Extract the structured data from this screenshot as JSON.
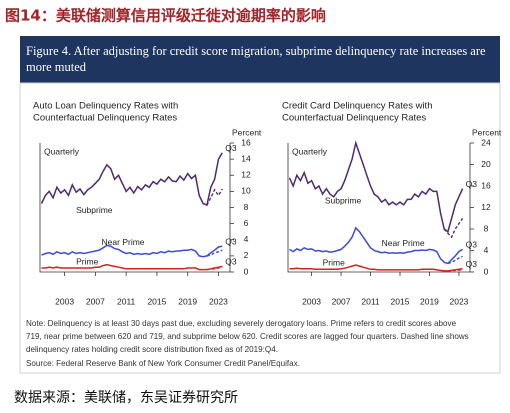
{
  "header": {
    "title": "图14：美联储测算信用评级迁徙对逾期率的影响"
  },
  "figure": {
    "title": [
      "Figure 4. After adjusting for credit score migration, subprime delinquency rate increases are",
      "more muted"
    ]
  },
  "chart_data": [
    {
      "type": "line",
      "title": [
        "Auto Loan Delinquency Rates with",
        "Counterfactual Delinquency Rates"
      ],
      "frequency_label": "Quarterly",
      "unit_label": "Percent",
      "x": [
        2000,
        2000.5,
        2001,
        2001.5,
        2002,
        2002.5,
        2003,
        2003.5,
        2004,
        2004.5,
        2005,
        2005.5,
        2006,
        2006.5,
        2007,
        2007.5,
        2008,
        2008.5,
        2009,
        2009.5,
        2010,
        2010.5,
        2011,
        2011.5,
        2012,
        2012.5,
        2013,
        2013.5,
        2014,
        2014.5,
        2015,
        2015.5,
        2016,
        2016.5,
        2017,
        2017.5,
        2018,
        2018.5,
        2019,
        2019.5,
        2020,
        2020.5,
        2021,
        2021.5,
        2022,
        2022.5,
        2023,
        2023.5
      ],
      "xlim": [
        1999.8,
        2024.5
      ],
      "xticks": [
        2003,
        2007,
        2011,
        2015,
        2019,
        2023
      ],
      "ylim": [
        0,
        16
      ],
      "yticks": [
        0,
        2,
        4,
        6,
        8,
        10,
        12,
        14,
        16
      ],
      "series": [
        {
          "name": "Subprime",
          "color": "#4e2a6e",
          "end_label": "Q3",
          "values": [
            8.5,
            9.5,
            10,
            9.2,
            10.5,
            9.8,
            10.2,
            9.5,
            10.8,
            9.9,
            10.3,
            9.6,
            10.2,
            10.5,
            11,
            11.5,
            12.5,
            13.3,
            12.8,
            11.5,
            12,
            11,
            10,
            10.5,
            9.8,
            10.6,
            10.2,
            10.8,
            10.5,
            11.2,
            10.9,
            11.5,
            11.2,
            11.8,
            11.3,
            11.2,
            11.9,
            11.4,
            12.2,
            11.6,
            12,
            9.5,
            8.5,
            8.3,
            10.5,
            11.5,
            14,
            14.8
          ]
        },
        {
          "name": "Near Prime",
          "color": "#3a4bd6",
          "end_label": "Q3",
          "values": [
            2.1,
            2.3,
            2.4,
            2.2,
            2.5,
            2.3,
            2.4,
            2.2,
            2.5,
            2.3,
            2.4,
            2.3,
            2.4,
            2.5,
            2.6,
            2.7,
            3.0,
            3.3,
            3.2,
            2.9,
            2.8,
            2.5,
            2.3,
            2.4,
            2.2,
            2.3,
            2.2,
            2.3,
            2.2,
            2.4,
            2.3,
            2.5,
            2.4,
            2.6,
            2.5,
            2.6,
            2.6,
            2.7,
            2.7,
            2.8,
            2.6,
            2.0,
            1.9,
            2.0,
            2.4,
            2.7,
            3.1,
            3.2
          ]
        },
        {
          "name": "Prime",
          "color": "#d62020",
          "end_label": "Q3",
          "values": [
            0.5,
            0.5,
            0.6,
            0.5,
            0.6,
            0.5,
            0.5,
            0.5,
            0.5,
            0.5,
            0.5,
            0.5,
            0.5,
            0.5,
            0.6,
            0.6,
            0.8,
            0.9,
            0.8,
            0.7,
            0.6,
            0.5,
            0.4,
            0.4,
            0.4,
            0.4,
            0.4,
            0.4,
            0.4,
            0.4,
            0.4,
            0.4,
            0.4,
            0.4,
            0.4,
            0.4,
            0.4,
            0.4,
            0.5,
            0.5,
            0.5,
            0.3,
            0.3,
            0.3,
            0.4,
            0.5,
            0.6,
            0.7
          ]
        },
        {
          "color": "#4e2a6e",
          "dashed": true,
          "x": [
            2021.5,
            2022,
            2022.5,
            2023,
            2023.5
          ],
          "values": [
            8.3,
            9.2,
            10.2,
            9.5,
            10.3
          ]
        },
        {
          "color": "#3a4bd6",
          "dashed": true,
          "x": [
            2021.5,
            2022,
            2022.5,
            2023,
            2023.5
          ],
          "values": [
            2.0,
            2.1,
            2.4,
            2.5,
            2.7
          ]
        },
        {
          "color": "#d62020",
          "dashed": true,
          "x": [
            2021.5,
            2022,
            2022.5,
            2023,
            2023.5
          ],
          "values": [
            0.3,
            0.35,
            0.4,
            0.5,
            0.55
          ]
        }
      ]
    },
    {
      "type": "line",
      "title": [
        "Credit Card Delinquency Rates with",
        "Counterfactual Delinquency Rates"
      ],
      "frequency_label": "Quarterly",
      "unit_label": "Percent",
      "x": [
        2000,
        2000.5,
        2001,
        2001.5,
        2002,
        2002.5,
        2003,
        2003.5,
        2004,
        2004.5,
        2005,
        2005.5,
        2006,
        2006.5,
        2007,
        2007.5,
        2008,
        2008.5,
        2009,
        2009.5,
        2010,
        2010.5,
        2011,
        2011.5,
        2012,
        2012.5,
        2013,
        2013.5,
        2014,
        2014.5,
        2015,
        2015.5,
        2016,
        2016.5,
        2017,
        2017.5,
        2018,
        2018.5,
        2019,
        2019.5,
        2020,
        2020.5,
        2021,
        2021.5,
        2022,
        2022.5,
        2023,
        2023.5
      ],
      "xlim": [
        1999.8,
        2024.5
      ],
      "xticks": [
        2003,
        2007,
        2011,
        2015,
        2019,
        2023
      ],
      "ylim": [
        0,
        24
      ],
      "yticks": [
        0,
        4,
        8,
        12,
        16,
        20,
        24
      ],
      "series": [
        {
          "name": "Subprime",
          "color": "#4e2a6e",
          "end_label": "Q3",
          "values": [
            17.5,
            16,
            18,
            17,
            18.5,
            16.5,
            17,
            15.5,
            16,
            14.5,
            15.5,
            14.5,
            14,
            15,
            15.5,
            17,
            19,
            21,
            24,
            22,
            20,
            18,
            16,
            14.5,
            14,
            13,
            13.5,
            12.5,
            13,
            12.5,
            13,
            12.5,
            13.5,
            13.5,
            14.5,
            14,
            15,
            14.5,
            15.5,
            15,
            15,
            11,
            8,
            7.5,
            10,
            12.5,
            14,
            15.5
          ]
        },
        {
          "name": "Near Prime",
          "color": "#3a4bd6",
          "end_label": "Q3",
          "values": [
            4.2,
            3.8,
            4.3,
            4,
            4.5,
            4.2,
            4.3,
            3.9,
            4,
            3.8,
            3.9,
            3.7,
            3.8,
            4,
            4.2,
            4.8,
            5.5,
            6.5,
            8.2,
            7.5,
            6.5,
            5.5,
            4.5,
            4,
            3.8,
            3.6,
            3.7,
            3.5,
            3.6,
            3.5,
            3.6,
            3.5,
            3.7,
            3.8,
            4,
            4,
            4.1,
            4,
            4.2,
            4.1,
            3.8,
            2.5,
            1.8,
            1.6,
            2.3,
            3,
            3.8,
            4.2
          ]
        },
        {
          "name": "Prime",
          "color": "#d62020",
          "end_label": "Q3",
          "values": [
            0.6,
            0.6,
            0.7,
            0.6,
            0.6,
            0.6,
            0.6,
            0.5,
            0.5,
            0.5,
            0.5,
            0.5,
            0.5,
            0.5,
            0.6,
            0.7,
            0.9,
            1.1,
            1.3,
            1.1,
            0.9,
            0.7,
            0.5,
            0.5,
            0.4,
            0.4,
            0.4,
            0.4,
            0.4,
            0.4,
            0.4,
            0.4,
            0.4,
            0.4,
            0.4,
            0.4,
            0.5,
            0.5,
            0.5,
            0.5,
            0.4,
            0.3,
            0.2,
            0.2,
            0.3,
            0.4,
            0.5,
            0.6
          ]
        },
        {
          "color": "#4e2a6e",
          "dashed": true,
          "x": [
            2021,
            2021.5,
            2022,
            2022.5,
            2023,
            2023.5
          ],
          "values": [
            8,
            7.2,
            6.5,
            8,
            9,
            10
          ]
        },
        {
          "color": "#3a4bd6",
          "dashed": true,
          "x": [
            2021.5,
            2022,
            2022.5,
            2023,
            2023.5
          ],
          "values": [
            1.6,
            1.8,
            2.2,
            2.6,
            2.9
          ]
        },
        {
          "color": "#d62020",
          "dashed": true,
          "x": [
            2021.5,
            2022,
            2022.5,
            2023,
            2023.5
          ],
          "values": [
            0.2,
            0.25,
            0.3,
            0.35,
            0.4
          ]
        }
      ]
    }
  ],
  "notes": [
    "Note: Delinquency is at least 30 days past due, excluding severely derogatory loans. Prime refers to credit scores above",
    "719, near prime between 620 and 719, and subprime below 620. Credit scores are lagged four quarters. Dashed line shows",
    "delinquency rates holding credit score distribution fixed as of 2019:Q4.",
    "Source: Federal Reserve Bank of New York Consumer Credit Panel/Equifax."
  ],
  "source": "数据来源：美联储，东吴证券研究所"
}
